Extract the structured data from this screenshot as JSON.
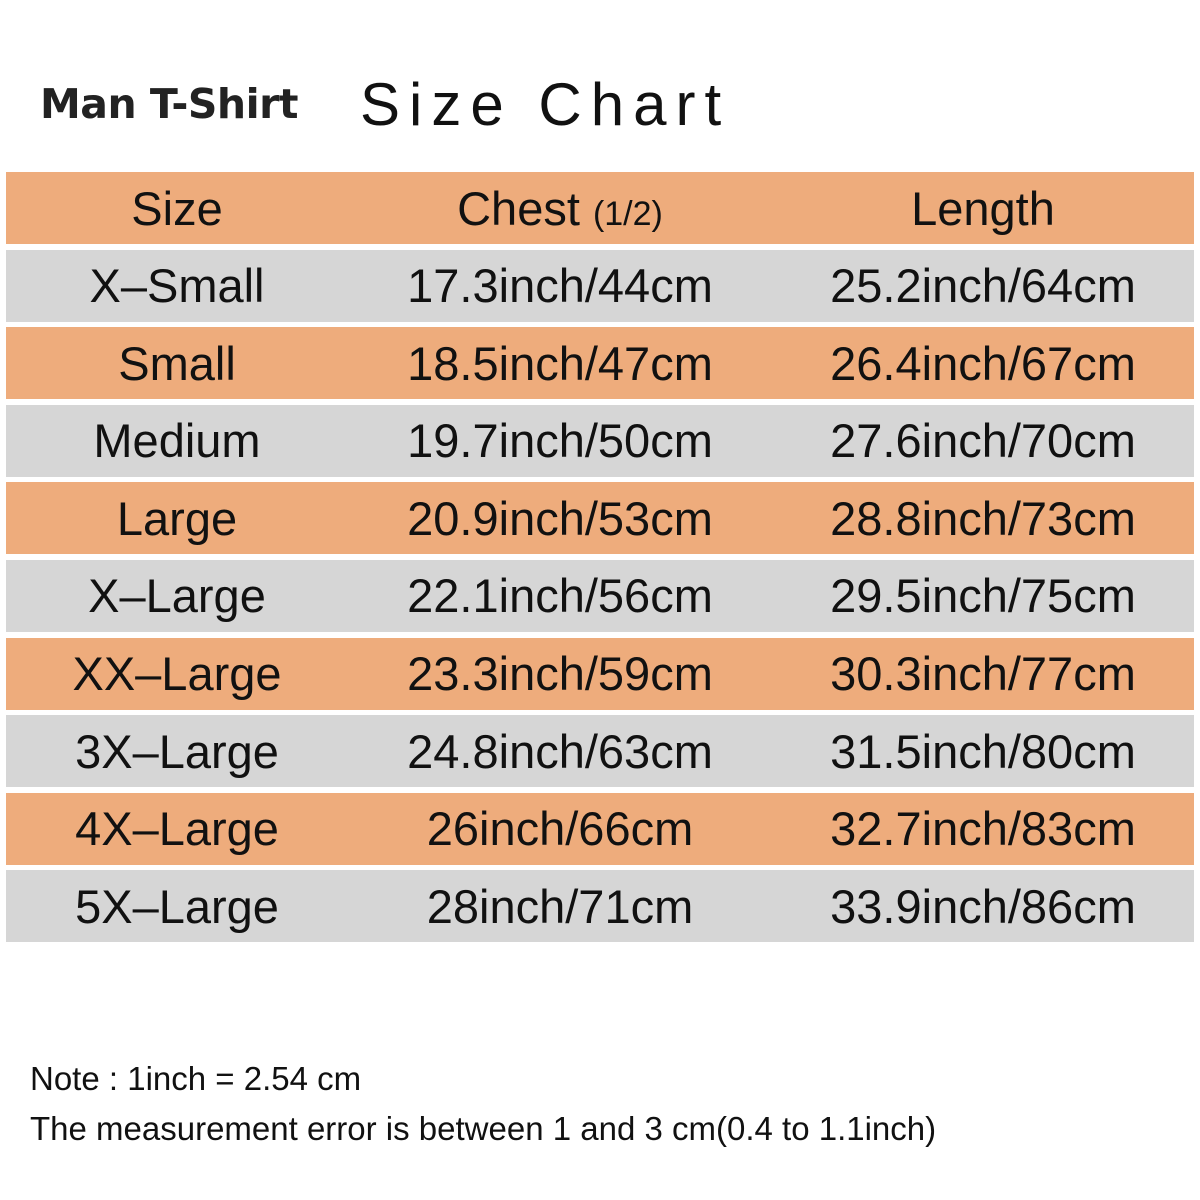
{
  "header": {
    "brand": "Man T-Shirt",
    "title": "Size Chart"
  },
  "colors": {
    "header_row": "#EEAC7C",
    "odd_row": "#D6D6D6",
    "even_row": "#EEAC7C"
  },
  "table": {
    "columns": {
      "size": "Size",
      "chest": "Chest",
      "chest_note": "(1/2)",
      "length": "Length"
    },
    "rows": [
      {
        "size": "X–Small",
        "chest": "17.3inch/44cm",
        "length": "25.2inch/64cm"
      },
      {
        "size": "Small",
        "chest": "18.5inch/47cm",
        "length": "26.4inch/67cm"
      },
      {
        "size": "Medium",
        "chest": "19.7inch/50cm",
        "length": "27.6inch/70cm"
      },
      {
        "size": "Large",
        "chest": "20.9inch/53cm",
        "length": "28.8inch/73cm"
      },
      {
        "size": "X–Large",
        "chest": "22.1inch/56cm",
        "length": "29.5inch/75cm"
      },
      {
        "size": "XX–Large",
        "chest": "23.3inch/59cm",
        "length": "30.3inch/77cm"
      },
      {
        "size": "3X–Large",
        "chest": "24.8inch/63cm",
        "length": "31.5inch/80cm"
      },
      {
        "size": "4X–Large",
        "chest": "26inch/66cm",
        "length": "32.7inch/83cm"
      },
      {
        "size": "5X–Large",
        "chest": "28inch/71cm",
        "length": "33.9inch/86cm"
      }
    ]
  },
  "notes": {
    "line1": "Note : 1inch = 2.54 cm",
    "line2": "The measurement error is between 1 and 3 cm(0.4 to 1.1inch)"
  }
}
